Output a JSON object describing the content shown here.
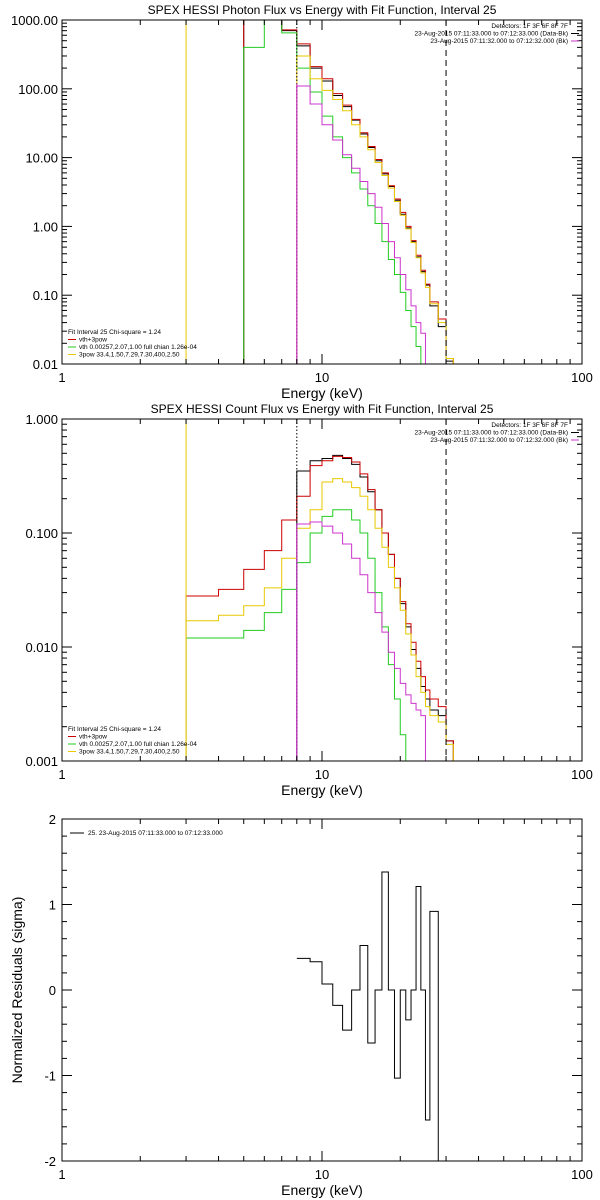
{
  "charts": [
    {
      "id": "photon",
      "title": "SPEX HESSI Photon Flux vs Energy with Fit Function, Interval 25",
      "xlabel": "Energy (keV)",
      "ylabel": "",
      "xticks": [
        "1",
        "10",
        "100"
      ],
      "yticks": [
        "1000.00",
        "100.00",
        "10.00",
        "1.00",
        "0.10",
        "0.01"
      ],
      "info": [
        "Detectors: 1F 3F 6F 8F 7F",
        "23-Aug-2015 07:11:33.000 to 07:12:33.000 (Data-Bk)",
        "23-Aug-2015 07:11:32.000 to 07:12:32.000 (Bk)"
      ],
      "legend": [
        "Fit Interval 25   Chi-square = 1.24",
        "vth+3pow",
        "vth 0.00257,2.07,1.00  full chian 1.26e-04",
        "3pow 33.4,1.50,7.29,7.30,400,2.50"
      ]
    },
    {
      "id": "count",
      "title": "SPEX HESSI Count Flux vs Energy with Fit Function, Interval 25",
      "xlabel": "Energy (keV)",
      "ylabel": "",
      "xticks": [
        "1",
        "10",
        "100"
      ],
      "yticks": [
        "1.000",
        "0.100",
        "0.010",
        "0.001"
      ],
      "info": [
        "Detectors: 1F 3F 6F 8F 7F",
        "23-Aug-2015 07:11:33.000 to 07:12:33.000 (Data-Bk)",
        "23-Aug-2015 07:11:32.000 to 07:12:32.000 (Bk)"
      ],
      "legend": [
        "Fit Interval 25   Chi-square = 1.24",
        "vth+3pow",
        "vth 0.00257,2.07,1.00  full chian 1.26e-04",
        "3pow 33.4,1.50,7.29,7.30,400,2.50"
      ]
    },
    {
      "id": "resid",
      "title": "",
      "xlabel": "Energy (keV)",
      "ylabel": "Normalized Residuals (sigma)",
      "xticks": [
        "1",
        "10",
        "100"
      ],
      "yticks": [
        "2",
        "1",
        "0",
        "-1",
        "-2"
      ],
      "info": [],
      "legend": [
        "25. 23-Aug-2015 07:11:33.000 to 07:12:33.000"
      ]
    }
  ],
  "chart_data": [
    {
      "type": "line",
      "title": "SPEX HESSI Photon Flux vs Energy with Fit Function, Interval 25",
      "xlabel": "Energy (keV)",
      "xscale": "log",
      "yscale": "log",
      "xlim": [
        1,
        100
      ],
      "ylim": [
        0.01,
        1000
      ],
      "legend_position": "bottom-left",
      "edges": [
        3,
        4,
        5,
        6,
        7,
        8,
        9,
        10,
        11,
        12,
        13,
        14,
        15,
        16,
        17,
        18,
        19,
        20,
        21,
        22,
        23,
        24,
        25,
        26,
        28,
        30,
        32
      ],
      "markers": [
        {
          "x": 3.0,
          "style": "solid",
          "color": "#e8c800"
        },
        {
          "x": 8.0,
          "style": "dotted",
          "color": "#000000"
        },
        {
          "x": 8.0,
          "style": "solid",
          "color": "#cc33cc"
        },
        {
          "x": 30.0,
          "style": "dashed",
          "color": "#000000"
        }
      ],
      "series": [
        {
          "name": "data",
          "color": "#000000",
          "values": [
            null,
            null,
            1000,
            1000,
            700,
            420,
            200,
            130,
            80,
            55,
            35,
            22,
            14,
            9,
            5.8,
            3.8,
            2.4,
            1.5,
            0.95,
            0.6,
            0.36,
            0.22,
            0.14,
            0.07,
            0.035,
            0.011
          ]
        },
        {
          "name": "vth+3pow",
          "color": "#cc0000",
          "values": [
            null,
            null,
            1000,
            1000,
            720,
            450,
            210,
            140,
            85,
            58,
            36,
            23,
            14.5,
            9.4,
            6.0,
            3.9,
            2.5,
            1.6,
            1.0,
            0.62,
            0.38,
            0.23,
            0.145,
            0.08,
            0.045,
            0.012
          ]
        },
        {
          "name": "vth",
          "color": "#22cc22",
          "values": [
            null,
            null,
            400,
            1000,
            650,
            200,
            90,
            40,
            20,
            10,
            6,
            3.5,
            2.0,
            1.1,
            0.6,
            0.33,
            0.2,
            0.11,
            0.06,
            0.035,
            0.018,
            0.01,
            null,
            null,
            null,
            null
          ]
        },
        {
          "name": "3pow",
          "color": "#e8c800",
          "values": [
            null,
            null,
            null,
            null,
            null,
            300,
            140,
            95,
            70,
            48,
            30,
            20,
            13,
            8.5,
            5.5,
            3.6,
            2.3,
            1.45,
            0.92,
            0.58,
            0.35,
            0.21,
            0.13,
            0.075,
            0.04,
            0.012
          ]
        },
        {
          "name": "background",
          "color": "#cc33cc",
          "values": [
            null,
            null,
            null,
            null,
            null,
            110,
            60,
            30,
            18,
            11,
            7,
            4.5,
            3.0,
            1.9,
            1.1,
            0.6,
            0.35,
            0.2,
            0.12,
            0.07,
            0.04,
            0.028,
            null,
            null,
            null,
            null
          ]
        }
      ]
    },
    {
      "type": "line",
      "title": "SPEX HESSI Count Flux vs Energy with Fit Function, Interval 25",
      "xlabel": "Energy (keV)",
      "xscale": "log",
      "yscale": "log",
      "xlim": [
        1,
        100
      ],
      "ylim": [
        0.001,
        1
      ],
      "legend_position": "bottom-left",
      "edges": [
        3,
        4,
        5,
        6,
        7,
        8,
        9,
        10,
        11,
        12,
        13,
        14,
        15,
        16,
        17,
        18,
        19,
        20,
        21,
        22,
        23,
        24,
        25,
        26,
        28,
        30,
        32
      ],
      "markers": [
        {
          "x": 3.0,
          "style": "solid",
          "color": "#e8c800"
        },
        {
          "x": 8.0,
          "style": "dotted",
          "color": "#000000"
        },
        {
          "x": 8.0,
          "style": "solid",
          "color": "#cc33cc"
        },
        {
          "x": 30.0,
          "style": "dashed",
          "color": "#000000"
        }
      ],
      "series": [
        {
          "name": "data",
          "color": "#000000",
          "values": [
            null,
            null,
            null,
            null,
            null,
            0.35,
            0.43,
            0.45,
            0.48,
            0.45,
            0.4,
            0.31,
            0.23,
            0.16,
            0.1,
            0.065,
            0.04,
            0.024,
            0.015,
            0.0095,
            0.0065,
            0.0045,
            0.0035,
            0.0028,
            0.0025,
            0.0015
          ]
        },
        {
          "name": "vth+3pow",
          "color": "#cc0000",
          "values": [
            0.028,
            0.032,
            0.048,
            0.07,
            0.13,
            0.21,
            0.39,
            0.43,
            0.47,
            0.46,
            0.42,
            0.33,
            0.24,
            0.16,
            0.1,
            0.065,
            0.04,
            0.025,
            0.016,
            0.011,
            0.0075,
            0.0055,
            0.0042,
            0.0035,
            0.003,
            0.0015
          ]
        },
        {
          "name": "vth",
          "color": "#22cc22",
          "values": [
            0.012,
            0.012,
            0.014,
            0.02,
            0.032,
            0.055,
            0.1,
            0.14,
            0.16,
            0.16,
            0.13,
            0.1,
            0.06,
            0.03,
            0.015,
            0.007,
            0.0035,
            0.0017,
            0.001,
            null,
            null,
            null,
            null,
            null,
            null,
            null
          ]
        },
        {
          "name": "3pow",
          "color": "#e8c800",
          "values": [
            0.017,
            0.019,
            0.023,
            0.033,
            0.06,
            0.11,
            0.16,
            0.28,
            0.3,
            0.28,
            0.25,
            0.21,
            0.16,
            0.11,
            0.075,
            0.05,
            0.033,
            0.021,
            0.013,
            0.0085,
            0.0055,
            0.004,
            0.003,
            0.0025,
            0.0022,
            0.0014
          ]
        },
        {
          "name": "background",
          "color": "#cc33cc",
          "values": [
            null,
            null,
            null,
            null,
            null,
            0.12,
            0.125,
            0.115,
            0.1,
            0.08,
            0.06,
            0.043,
            0.03,
            0.02,
            0.0135,
            0.009,
            0.0065,
            0.0048,
            0.0038,
            0.0032,
            0.0028,
            0.0025,
            null,
            null,
            null,
            null
          ]
        }
      ]
    },
    {
      "type": "line",
      "title": "",
      "xlabel": "Energy (keV)",
      "ylabel": "Normalized Residuals (sigma)",
      "xscale": "log",
      "yscale": "linear",
      "xlim": [
        1,
        100
      ],
      "ylim": [
        -2,
        2
      ],
      "legend_position": "top-left",
      "edges": [
        8,
        9,
        10,
        11,
        12,
        13,
        14,
        15,
        16,
        17,
        18,
        19,
        20,
        21,
        22,
        23,
        24,
        25,
        26,
        28,
        30
      ],
      "series": [
        {
          "name": "25. 23-Aug-2015 07:11:33.000 to 07:12:33.000",
          "color": "#000000",
          "values": [
            0.37,
            0.33,
            0.07,
            -0.18,
            -0.47,
            0.0,
            0.52,
            -0.62,
            0.0,
            1.38,
            0.0,
            -1.03,
            0.0,
            -0.35,
            0.0,
            1.21,
            0.0,
            -1.52,
            0.92,
            null
          ]
        }
      ]
    }
  ]
}
